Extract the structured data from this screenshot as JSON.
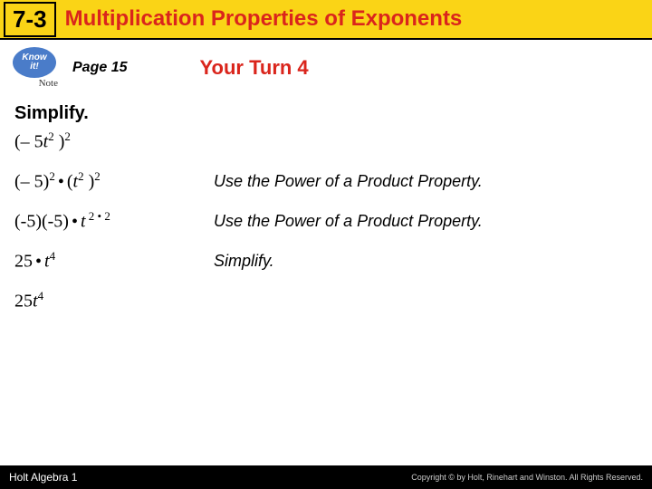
{
  "header": {
    "section_number": "7-3",
    "title": "Multiplication Properties of Exponents"
  },
  "badge": {
    "line1": "Know",
    "line2": "it!",
    "note": "Note"
  },
  "page_label": "Page 15",
  "your_turn": "Your Turn 4",
  "simplify_label": "Simplify.",
  "steps": [
    {
      "formula_html": "(– 5<span class='it'>t</span><sup>2</sup> )<sup>2</sup>",
      "explain": ""
    },
    {
      "formula_html": "(– 5)<sup>2</sup><span class='dot'>•</span>(<span class='it'>t</span><sup>2</sup> )<sup>2</sup>",
      "explain": "Use the Power of a Product Property."
    },
    {
      "formula_html": "(-5)(-5)<span class='dot'>•</span><span class='it'>t</span><sup> 2 • 2</sup>",
      "explain": "Use the Power of a Product Property."
    },
    {
      "formula_html": "25<span class='dot'>•</span><span class='it'>t</span><sup>4</sup>",
      "explain": "Simplify."
    },
    {
      "formula_html": "25<span class='it'>t</span><sup>4</sup>",
      "explain": ""
    }
  ],
  "footer": {
    "left": "Holt Algebra 1",
    "right": "Copyright © by Holt, Rinehart and Winston. All Rights Reserved."
  },
  "colors": {
    "header_bg": "#fad416",
    "accent_red": "#da251c",
    "footer_bg": "#000000"
  }
}
